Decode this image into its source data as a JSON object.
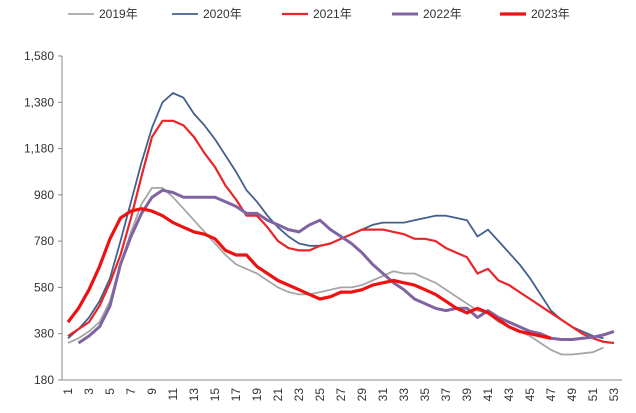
{
  "chart_data": {
    "type": "line",
    "categories": [
      "1",
      null,
      "3",
      null,
      "5",
      null,
      "7",
      null,
      "9",
      null,
      "11",
      null,
      "13",
      null,
      "15",
      null,
      "17",
      null,
      "19",
      null,
      "21",
      null,
      "23",
      null,
      "25",
      null,
      "27",
      null,
      "29",
      null,
      "31",
      null,
      "33",
      null,
      "35",
      null,
      "37",
      null,
      "39",
      null,
      "41",
      null,
      "43",
      null,
      "45",
      null,
      "47",
      null,
      "49",
      null,
      "51",
      null,
      "53"
    ],
    "ylim": [
      180,
      1580
    ],
    "yticks": [
      180,
      380,
      580,
      780,
      980,
      {
        "value": 1180,
        "label": "1,180"
      },
      {
        "value": 1380,
        "label": "1,380"
      },
      {
        "value": 1580,
        "label": "1,580"
      }
    ],
    "grid": false,
    "legend": "top",
    "series": [
      {
        "name": "2019年",
        "color": "#a6a6a6",
        "width": 1.8,
        "values": [
          340,
          360,
          390,
          430,
          520,
          680,
          820,
          940,
          1010,
          1010,
          970,
          920,
          870,
          820,
          770,
          720,
          680,
          660,
          640,
          610,
          580,
          560,
          550,
          550,
          560,
          570,
          580,
          580,
          590,
          610,
          630,
          650,
          640,
          640,
          620,
          600,
          570,
          540,
          510,
          480,
          470,
          430,
          410,
          390,
          370,
          340,
          310,
          290,
          290,
          295,
          300,
          320,
          null
        ]
      },
      {
        "name": "2020年",
        "color": "#44608c",
        "width": 1.8,
        "values": [
          360,
          400,
          450,
          520,
          620,
          780,
          950,
          1120,
          1270,
          1380,
          1420,
          1400,
          1330,
          1280,
          1220,
          1150,
          1080,
          1000,
          950,
          890,
          840,
          800,
          770,
          760,
          760,
          770,
          790,
          810,
          830,
          850,
          860,
          860,
          860,
          870,
          880,
          890,
          890,
          880,
          870,
          800,
          830,
          780,
          730,
          680,
          620,
          550,
          480,
          440,
          410,
          390,
          370,
          360,
          null
        ]
      },
      {
        "name": "2021年",
        "color": "#e8262a",
        "width": 2.2,
        "values": [
          370,
          400,
          430,
          500,
          600,
          720,
          880,
          1060,
          1230,
          1300,
          1300,
          1280,
          1230,
          1160,
          1100,
          1020,
          960,
          890,
          890,
          840,
          780,
          750,
          740,
          740,
          760,
          770,
          790,
          810,
          830,
          830,
          830,
          820,
          810,
          790,
          790,
          780,
          750,
          730,
          710,
          640,
          660,
          610,
          590,
          560,
          530,
          500,
          470,
          440,
          410,
          380,
          360,
          345,
          340
        ]
      },
      {
        "name": "2022年",
        "color": "#8064a2",
        "width": 3,
        "values": [
          null,
          340,
          370,
          410,
          500,
          680,
          800,
          900,
          970,
          1000,
          990,
          970,
          970,
          970,
          970,
          950,
          930,
          900,
          900,
          870,
          850,
          830,
          820,
          850,
          870,
          830,
          800,
          770,
          730,
          680,
          640,
          600,
          570,
          530,
          510,
          490,
          480,
          490,
          490,
          450,
          480,
          450,
          430,
          410,
          390,
          380,
          360,
          355,
          355,
          360,
          365,
          375,
          390
        ]
      },
      {
        "name": "2023年",
        "color": "#ee1111",
        "width": 3.2,
        "values": [
          430,
          490,
          570,
          670,
          790,
          880,
          910,
          920,
          910,
          890,
          860,
          840,
          820,
          810,
          790,
          740,
          720,
          720,
          670,
          640,
          610,
          590,
          570,
          550,
          530,
          540,
          560,
          560,
          570,
          590,
          600,
          610,
          600,
          590,
          570,
          550,
          520,
          490,
          470,
          490,
          470,
          440,
          410,
          390,
          380,
          370,
          360,
          null,
          null,
          null,
          null,
          null,
          null
        ]
      }
    ]
  }
}
